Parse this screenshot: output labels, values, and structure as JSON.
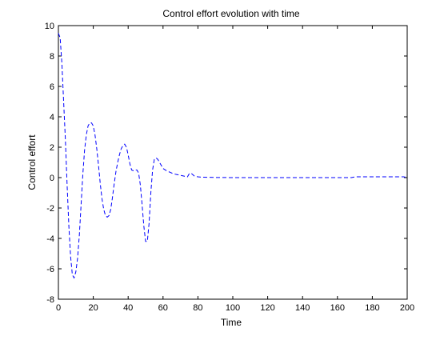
{
  "chart_data": {
    "type": "line",
    "title": "Control effort evolution with time",
    "xlabel": "Time",
    "ylabel": "Control effort",
    "xlim": [
      0,
      200
    ],
    "ylim": [
      -8,
      10
    ],
    "xticks": [
      0,
      20,
      40,
      60,
      80,
      100,
      120,
      140,
      160,
      180,
      200
    ],
    "yticks": [
      -8,
      -6,
      -4,
      -2,
      0,
      2,
      4,
      6,
      8,
      10
    ],
    "grid": false,
    "legend": null,
    "series": [
      {
        "color": "#0000ff",
        "line_style": "dashed",
        "x": [
          0,
          1,
          2,
          3,
          4,
          5,
          6,
          7,
          8,
          9,
          10,
          11,
          12,
          13,
          14,
          15,
          16,
          17,
          18,
          19,
          20,
          21,
          22,
          23,
          24,
          25,
          26,
          27,
          28,
          29,
          30,
          31,
          32,
          33,
          34,
          35,
          36,
          37,
          38,
          39,
          40,
          41,
          42,
          43,
          44,
          45,
          46,
          47,
          48,
          49,
          50,
          51,
          52,
          53,
          54,
          55,
          56,
          57,
          58,
          59,
          60,
          62,
          64,
          66,
          68,
          70,
          72,
          74,
          75,
          76,
          77,
          78,
          80,
          82,
          85,
          90,
          100,
          120,
          140,
          160,
          168,
          170,
          172,
          175,
          180,
          190,
          198,
          200
        ],
        "y": [
          9.5,
          9.2,
          7.5,
          5.0,
          2.5,
          -0.5,
          -3.2,
          -5.2,
          -6.4,
          -6.6,
          -6.2,
          -5.3,
          -3.8,
          -1.8,
          0.2,
          1.8,
          2.8,
          3.4,
          3.6,
          3.6,
          3.4,
          2.8,
          1.9,
          0.8,
          -0.4,
          -1.4,
          -2.1,
          -2.5,
          -2.6,
          -2.5,
          -2.1,
          -1.3,
          -0.4,
          0.4,
          1.0,
          1.5,
          1.9,
          2.1,
          2.2,
          2.0,
          1.5,
          0.9,
          0.5,
          0.45,
          0.5,
          0.5,
          0.3,
          -0.5,
          -1.8,
          -3.2,
          -4.2,
          -4.2,
          -3.0,
          -1.0,
          0.5,
          1.2,
          1.3,
          1.2,
          1.0,
          0.8,
          0.6,
          0.45,
          0.35,
          0.25,
          0.2,
          0.15,
          0.1,
          0.05,
          0.25,
          0.3,
          0.2,
          0.1,
          0.05,
          0.03,
          0.02,
          0.01,
          0.0,
          0.0,
          0.0,
          0.0,
          0.0,
          0.05,
          0.05,
          0.05,
          0.05,
          0.05,
          0.05,
          0.0
        ]
      }
    ]
  }
}
